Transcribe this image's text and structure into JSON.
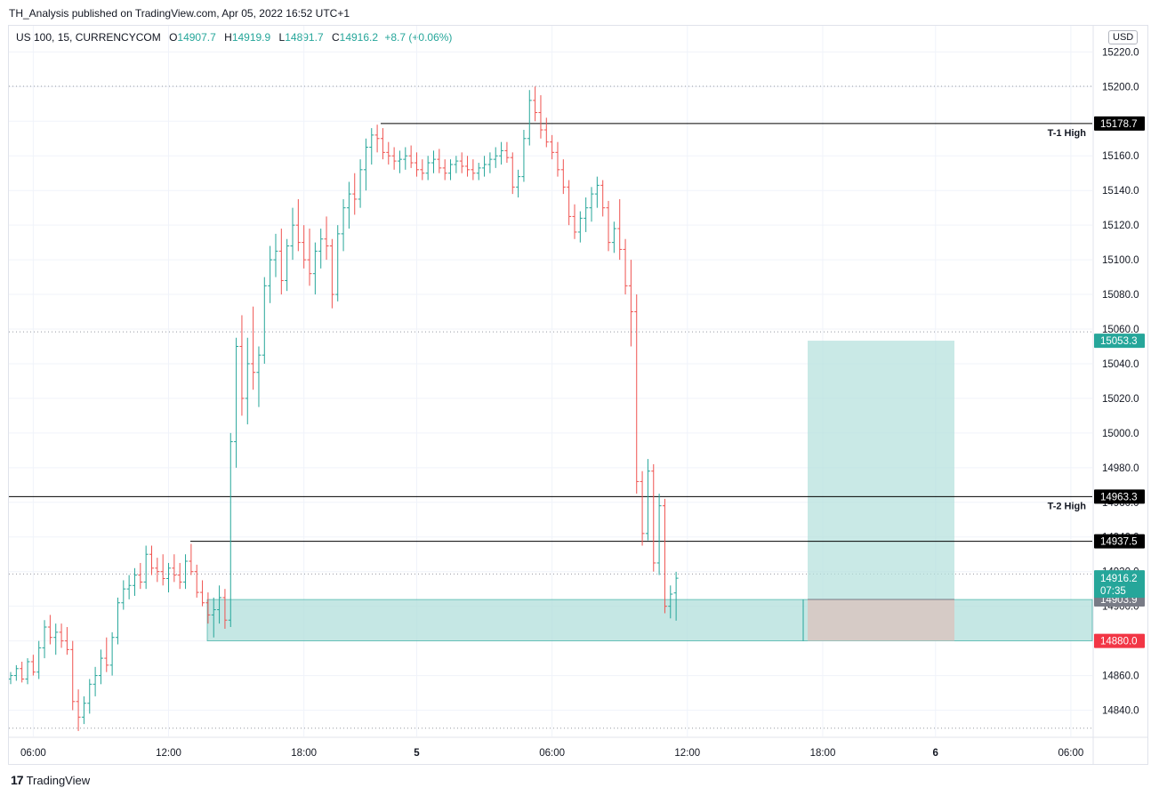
{
  "header": {
    "published": "TH_Analysis published on TradingView.com, Apr 05, 2022 16:52 UTC+1"
  },
  "legend": {
    "symbol": "US 100, 15, CURRENCYCOM",
    "open_label": "O",
    "open": "14907.7",
    "high_label": "H",
    "high": "14919.9",
    "low_label": "L",
    "low": "14891.7",
    "close_label": "C",
    "close": "14916.2",
    "change": "+8.7 (+0.06%)"
  },
  "currency_badge": "USD",
  "footer": {
    "logo_glyph": "17",
    "brand": "TradingView"
  },
  "colors": {
    "up": "#26a69a",
    "down": "#ef5350",
    "zone": "#b2dfdb",
    "stop_zone": "#d7c9c4",
    "level_line": "#000000",
    "grid": "#f0f3fa"
  },
  "chart_data": {
    "type": "candlestick",
    "ylim": [
      14830,
      15232
    ],
    "y_ticks": [
      14840,
      14860,
      14880,
      14900,
      14920,
      14940,
      14960,
      14980,
      15000,
      15020,
      15040,
      15060,
      15080,
      15100,
      15120,
      15140,
      15160,
      15180,
      15200,
      15220
    ],
    "x_labels": [
      "06:00",
      "12:00",
      "18:00",
      "5",
      "06:00",
      "12:00",
      "18:00",
      "6",
      "06:00"
    ],
    "x_label_bars": [
      4,
      28,
      52,
      72,
      96,
      120,
      144,
      164,
      188
    ],
    "grid": true,
    "bars": [
      [
        14858,
        14862,
        14855,
        14860
      ],
      [
        14860,
        14866,
        14857,
        14864
      ],
      [
        14864,
        14868,
        14856,
        14858
      ],
      [
        14858,
        14870,
        14855,
        14868
      ],
      [
        14868,
        14872,
        14860,
        14862
      ],
      [
        14862,
        14880,
        14858,
        14876
      ],
      [
        14876,
        14892,
        14870,
        14888
      ],
      [
        14888,
        14895,
        14878,
        14882
      ],
      [
        14882,
        14890,
        14872,
        14885
      ],
      [
        14885,
        14890,
        14876,
        14880
      ],
      [
        14880,
        14888,
        14872,
        14875
      ],
      [
        14875,
        14880,
        14840,
        14845
      ],
      [
        14845,
        14852,
        14828,
        14836
      ],
      [
        14836,
        14848,
        14832,
        14844
      ],
      [
        14844,
        14858,
        14838,
        14855
      ],
      [
        14855,
        14865,
        14848,
        14860
      ],
      [
        14860,
        14875,
        14855,
        14870
      ],
      [
        14870,
        14882,
        14862,
        14866
      ],
      [
        14866,
        14885,
        14860,
        14882
      ],
      [
        14882,
        14905,
        14878,
        14902
      ],
      [
        14902,
        14915,
        14898,
        14910
      ],
      [
        14910,
        14918,
        14904,
        14912
      ],
      [
        14912,
        14922,
        14906,
        14918
      ],
      [
        14918,
        14925,
        14910,
        14914
      ],
      [
        14914,
        14935,
        14910,
        14930
      ],
      [
        14930,
        14935,
        14918,
        14922
      ],
      [
        14922,
        14928,
        14914,
        14920
      ],
      [
        14920,
        14930,
        14912,
        14916
      ],
      [
        14916,
        14925,
        14908,
        14922
      ],
      [
        14922,
        14930,
        14914,
        14918
      ],
      [
        14918,
        14925,
        14910,
        14914
      ],
      [
        14914,
        14930,
        14910,
        14926
      ],
      [
        14926,
        14936,
        14918,
        14920
      ],
      [
        14920,
        14924,
        14905,
        14908
      ],
      [
        14908,
        14915,
        14900,
        14902
      ],
      [
        14902,
        14908,
        14890,
        14895
      ],
      [
        14895,
        14905,
        14882,
        14898
      ],
      [
        14898,
        14912,
        14890,
        14905
      ],
      [
        14905,
        14910,
        14887,
        14892
      ],
      [
        14892,
        15000,
        14888,
        14995
      ],
      [
        14995,
        15055,
        14980,
        15050
      ],
      [
        15050,
        15068,
        15010,
        15020
      ],
      [
        15020,
        15055,
        15005,
        15040
      ],
      [
        15040,
        15073,
        15025,
        15035
      ],
      [
        15035,
        15050,
        15015,
        15045
      ],
      [
        15045,
        15090,
        15040,
        15085
      ],
      [
        15085,
        15108,
        15075,
        15100
      ],
      [
        15100,
        15115,
        15090,
        15105
      ],
      [
        15105,
        15118,
        15080,
        15088
      ],
      [
        15088,
        15112,
        15082,
        15108
      ],
      [
        15108,
        15130,
        15100,
        15120
      ],
      [
        15120,
        15135,
        15105,
        15110
      ],
      [
        15110,
        15120,
        15095,
        15100
      ],
      [
        15100,
        15118,
        15085,
        15092
      ],
      [
        15092,
        15110,
        15080,
        15105
      ],
      [
        15105,
        15118,
        15095,
        15112
      ],
      [
        15112,
        15125,
        15100,
        15108
      ],
      [
        15108,
        15112,
        15072,
        15080
      ],
      [
        15080,
        15120,
        15076,
        15115
      ],
      [
        15115,
        15135,
        15105,
        15130
      ],
      [
        15130,
        15145,
        15118,
        15138
      ],
      [
        15138,
        15150,
        15126,
        15135
      ],
      [
        15135,
        15158,
        15130,
        15152
      ],
      [
        15152,
        15170,
        15140,
        15165
      ],
      [
        15165,
        15176,
        15155,
        15172
      ],
      [
        15172,
        15178,
        15162,
        15170
      ],
      [
        15170,
        15176,
        15158,
        15162
      ],
      [
        15162,
        15168,
        15155,
        15160
      ],
      [
        15160,
        15165,
        15152,
        15157
      ],
      [
        15157,
        15163,
        15150,
        15158
      ],
      [
        15158,
        15165,
        15152,
        15160
      ],
      [
        15160,
        15166,
        15153,
        15156
      ],
      [
        15156,
        15162,
        15148,
        15152
      ],
      [
        15152,
        15158,
        15146,
        15150
      ],
      [
        15150,
        15160,
        15146,
        15156
      ],
      [
        15156,
        15163,
        15150,
        15158
      ],
      [
        15158,
        15164,
        15150,
        15153
      ],
      [
        15153,
        15158,
        15146,
        15150
      ],
      [
        15150,
        15158,
        15146,
        15155
      ],
      [
        15155,
        15160,
        15150,
        15157
      ],
      [
        15157,
        15162,
        15150,
        15154
      ],
      [
        15154,
        15160,
        15148,
        15152
      ],
      [
        15152,
        15158,
        15146,
        15150
      ],
      [
        15150,
        15156,
        15146,
        15153
      ],
      [
        15153,
        15160,
        15148,
        15155
      ],
      [
        15155,
        15162,
        15150,
        15158
      ],
      [
        15158,
        15165,
        15153,
        15160
      ],
      [
        15160,
        15168,
        15155,
        15163
      ],
      [
        15163,
        15168,
        15156,
        15159
      ],
      [
        15159,
        15162,
        15138,
        15142
      ],
      [
        15142,
        15152,
        15136,
        15148
      ],
      [
        15148,
        15175,
        15145,
        15170
      ],
      [
        15170,
        15198,
        15166,
        15192
      ],
      [
        15192,
        15200,
        15180,
        15185
      ],
      [
        15185,
        15195,
        15170,
        15175
      ],
      [
        15175,
        15182,
        15165,
        15168
      ],
      [
        15168,
        15172,
        15158,
        15162
      ],
      [
        15162,
        15168,
        15148,
        15152
      ],
      [
        15152,
        15158,
        15138,
        15142
      ],
      [
        15142,
        15146,
        15120,
        15125
      ],
      [
        15125,
        15132,
        15112,
        15116
      ],
      [
        15116,
        15128,
        15110,
        15124
      ],
      [
        15124,
        15136,
        15116,
        15130
      ],
      [
        15130,
        15142,
        15122,
        15138
      ],
      [
        15138,
        15148,
        15130,
        15143
      ],
      [
        15143,
        15146,
        15125,
        15130
      ],
      [
        15130,
        15134,
        15105,
        15110
      ],
      [
        15110,
        15122,
        15104,
        15118
      ],
      [
        15118,
        15135,
        15100,
        15106
      ],
      [
        15106,
        15112,
        15080,
        15085
      ],
      [
        15085,
        15100,
        15050,
        15070
      ],
      [
        15070,
        15080,
        14965,
        14972
      ],
      [
        14972,
        14978,
        14935,
        14942
      ],
      [
        14942,
        14985,
        14938,
        14978
      ],
      [
        14978,
        14982,
        14920,
        14925
      ],
      [
        14925,
        14965,
        14918,
        14958
      ],
      [
        14958,
        14962,
        14896,
        14900
      ],
      [
        14900,
        14912,
        14893,
        14907
      ],
      [
        14907.7,
        14919.9,
        14891.7,
        14916.2
      ]
    ],
    "levels": [
      {
        "name": "T-1 High",
        "label": "T-1 High",
        "price": 15178.7,
        "price_label": "15178.7"
      },
      {
        "name": "T-2 High",
        "label": "T-2 High",
        "price": 14963.3,
        "price_label": "14963.3"
      },
      {
        "name": "level-3",
        "label": "",
        "price": 14937.5,
        "price_label": "14937.5"
      }
    ],
    "demand_zone": {
      "top": 14903.9,
      "bottom": 14880.0,
      "top_label": "14903.9",
      "bottom_label": "14880.0"
    },
    "position": {
      "entry": 14903.9,
      "target": 15053.3,
      "stop": 14880.0,
      "target_label": "15053.3"
    },
    "last_price": {
      "value": 14916.2,
      "label": "14916.2",
      "countdown": "07:35"
    },
    "dotted_levels": [
      15200.2,
      15058.4,
      14918.6,
      14829.6
    ]
  }
}
